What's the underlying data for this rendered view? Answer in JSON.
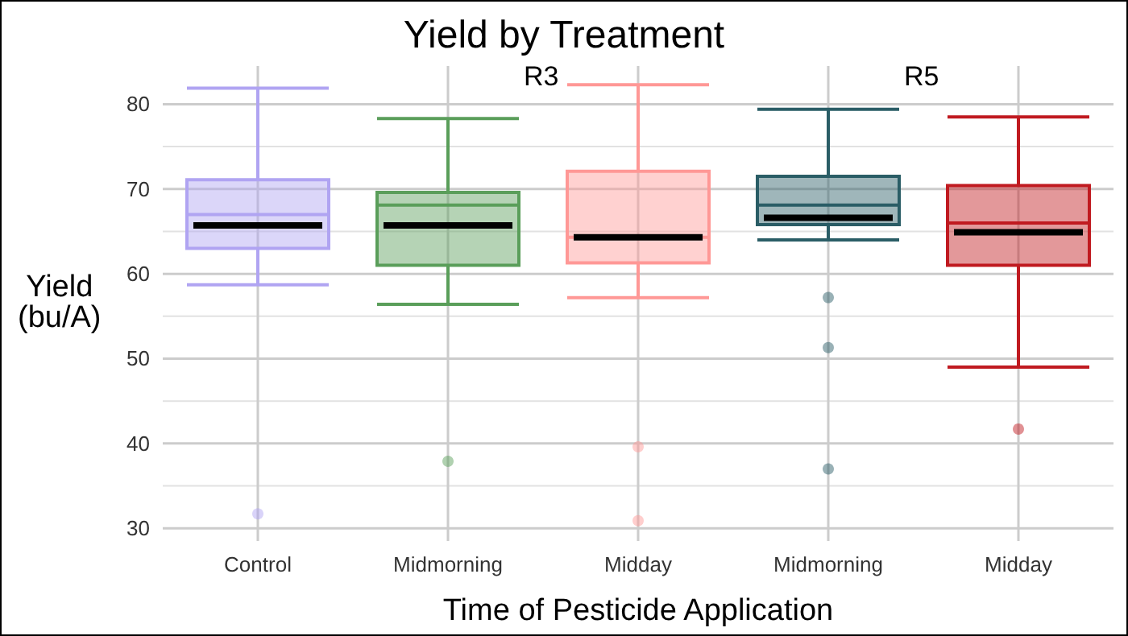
{
  "chart_data": {
    "type": "box",
    "title": "Yield by Treatment",
    "xlabel": "Time of Pesticide Application",
    "ylabel": "Yield\n(bu/A)",
    "categories": [
      "Control",
      "Midmorning",
      "Midday",
      "Midmorning",
      "Midday"
    ],
    "colors": [
      "#b0a4f2",
      "#5a9e5a",
      "#ff9896",
      "#2a5d66",
      "#c01a20"
    ],
    "boxes": [
      {
        "low": 58.7,
        "q1": 63.0,
        "median": 67.0,
        "q3": 71.1,
        "high": 81.9,
        "mean": 65.7,
        "outliers": [
          31.7
        ]
      },
      {
        "low": 56.4,
        "q1": 61.0,
        "median": 68.1,
        "q3": 69.6,
        "high": 78.3,
        "mean": 65.7,
        "outliers": [
          37.9
        ]
      },
      {
        "low": 57.2,
        "q1": 61.3,
        "median": 64.3,
        "q3": 72.1,
        "high": 82.3,
        "mean": 64.3,
        "outliers": [
          39.6,
          30.9
        ]
      },
      {
        "low": 64.0,
        "q1": 65.8,
        "median": 68.1,
        "q3": 71.5,
        "high": 79.4,
        "mean": 66.6,
        "outliers": [
          57.2,
          51.3,
          37.0
        ]
      },
      {
        "low": 49.0,
        "q1": 61.0,
        "median": 66.0,
        "q3": 70.4,
        "high": 78.5,
        "mean": 64.9,
        "outliers": [
          41.7
        ]
      }
    ],
    "annotations": [
      "R3",
      "R5"
    ],
    "ylim": [
      28.5,
      84.5
    ],
    "yticks": [
      30,
      40,
      50,
      60,
      70,
      80
    ],
    "grid": true
  }
}
